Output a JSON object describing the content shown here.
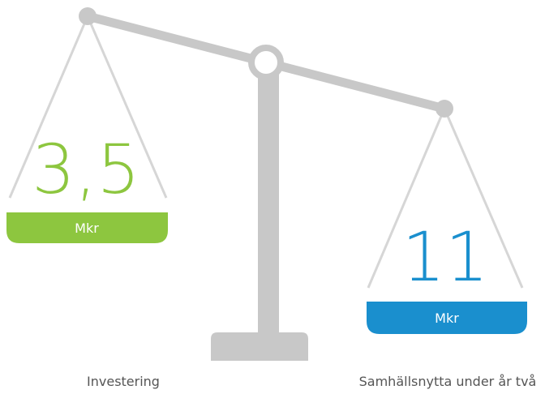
{
  "pans": [
    {
      "value": "3,5",
      "unit": "Mkr",
      "label": "Investering"
    },
    {
      "value": "11",
      "unit": "Mkr",
      "label": "Samhällsnytta under år två"
    }
  ]
}
